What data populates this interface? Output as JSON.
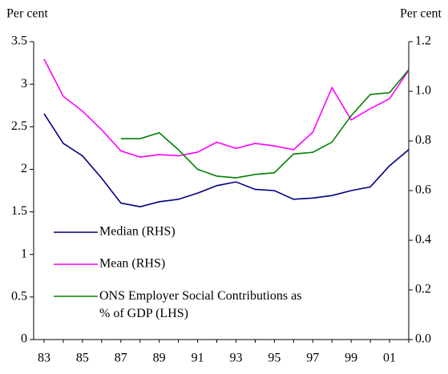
{
  "chart_data": {
    "type": "line",
    "y_label": "Per cent",
    "y2_label": "Per cent",
    "categories": [
      "83",
      null,
      "85",
      null,
      "87",
      null,
      "89",
      null,
      "91",
      null,
      "93",
      null,
      "95",
      null,
      "97",
      null,
      "99",
      null,
      "01",
      null
    ],
    "series": [
      {
        "name": "Median (RHS)",
        "color": "#000080",
        "axis": "y2",
        "values": [
          0.91,
          0.79,
          0.74,
          0.65,
          0.55,
          0.535,
          0.555,
          0.565,
          0.59,
          0.62,
          0.635,
          0.605,
          0.6,
          0.565,
          0.57,
          0.58,
          0.6,
          0.615,
          0.7,
          0.765
        ]
      },
      {
        "name": "Mean (RHS)",
        "color": "#ff00ff",
        "axis": "y2",
        "values": [
          1.13,
          0.98,
          0.92,
          0.845,
          0.76,
          0.735,
          0.745,
          0.74,
          0.755,
          0.795,
          0.77,
          0.79,
          0.78,
          0.765,
          0.835,
          1.015,
          0.885,
          0.93,
          0.97,
          1.085
        ]
      },
      {
        "name": "ONS Employer Social Contributions as % of GDP (LHS)",
        "color": "#008000",
        "values": [
          null,
          null,
          null,
          null,
          2.36,
          2.36,
          2.43,
          2.23,
          2.0,
          1.92,
          1.9,
          1.94,
          1.96,
          2.18,
          2.2,
          2.32,
          2.63,
          2.88,
          2.9,
          3.17
        ]
      }
    ],
    "ylim": [
      0,
      3.5
    ],
    "yticks": [
      0,
      0.5,
      1,
      1.5,
      2,
      2.5,
      3,
      3.5
    ],
    "y2lim": [
      0,
      1.2
    ],
    "y2ticks": [
      {
        "value": 0,
        "label": "0.0"
      },
      0.2,
      0.4,
      0.6,
      0.8,
      {
        "value": 1,
        "label": "1.0"
      },
      1.2
    ],
    "legend": "bottom-left"
  }
}
